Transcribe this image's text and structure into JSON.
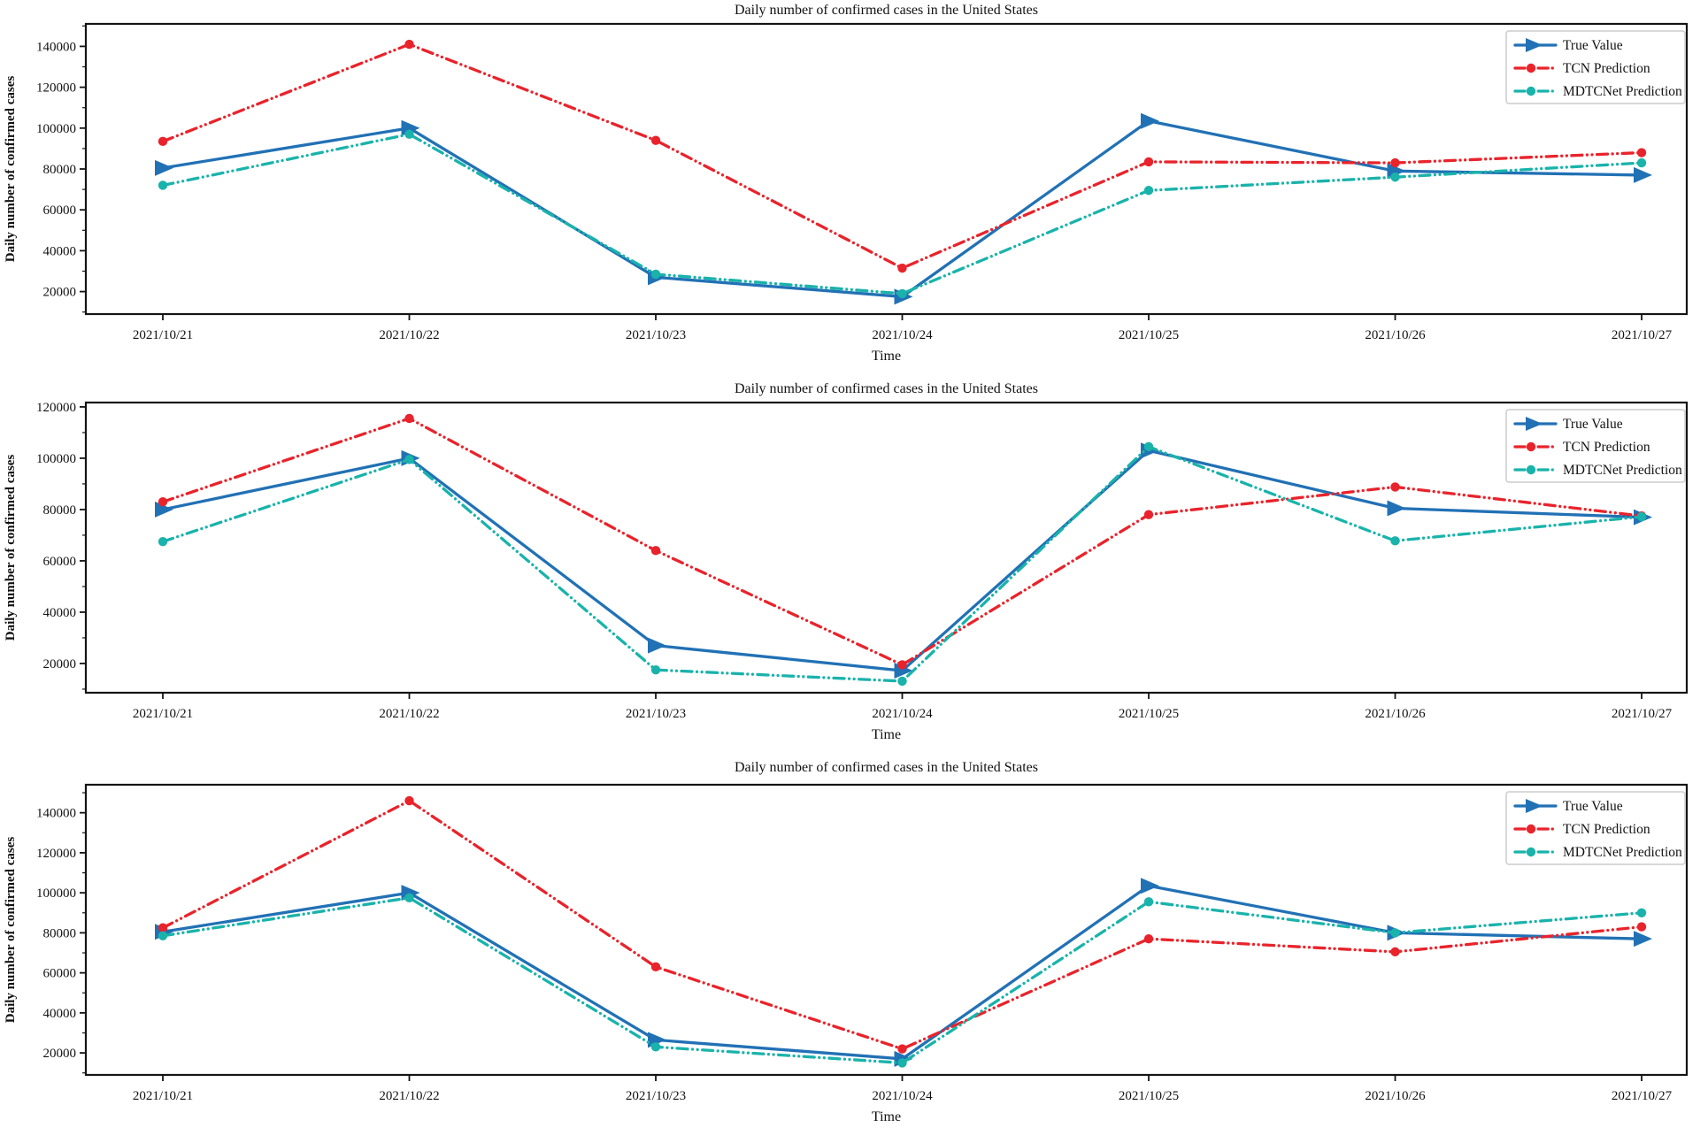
{
  "figure": {
    "background": "#ffffff",
    "spine_color": "#141414"
  },
  "chart_data": [
    {
      "type": "line",
      "title": "Daily number of confirmed cases in the United States",
      "xlabel": "Time",
      "ylabel": "Daily number of confirmed cases",
      "x": [
        "2021/10/21",
        "2021/10/22",
        "2021/10/23",
        "2021/10/24",
        "2021/10/25",
        "2021/10/26",
        "2021/10/27"
      ],
      "yticks": [
        20000,
        40000,
        60000,
        80000,
        100000,
        120000,
        140000
      ],
      "ylim": [
        9000,
        151000
      ],
      "grid": false,
      "legend_position": "upper right",
      "series": [
        {
          "name": "True Value",
          "color": "#2171b5",
          "line": "solid",
          "marker": "triangle-right",
          "values": [
            80500,
            100000,
            27000,
            17500,
            103500,
            79000,
            77000
          ]
        },
        {
          "name": "TCN Prediction",
          "color": "#e9232b",
          "line": "dashdotdot",
          "marker": "circle",
          "values": [
            93500,
            141000,
            94000,
            31500,
            83500,
            83000,
            88000
          ]
        },
        {
          "name": "MDTCNet Prediction",
          "color": "#19b3ab",
          "line": "dashdotdot",
          "marker": "circle",
          "values": [
            72000,
            97000,
            28500,
            19000,
            69500,
            76000,
            83000
          ]
        }
      ]
    },
    {
      "type": "line",
      "title": "Daily number of confirmed cases in the United States",
      "xlabel": "Time",
      "ylabel": "Daily number of confirmed cases",
      "x": [
        "2021/10/21",
        "2021/10/22",
        "2021/10/23",
        "2021/10/24",
        "2021/10/25",
        "2021/10/26",
        "2021/10/27"
      ],
      "yticks": [
        20000,
        40000,
        60000,
        80000,
        100000,
        120000
      ],
      "ylim": [
        8600,
        121700
      ],
      "grid": false,
      "legend_position": "upper right",
      "series": [
        {
          "name": "True Value",
          "color": "#2171b5",
          "line": "solid",
          "marker": "triangle-right",
          "values": [
            80000,
            100000,
            27000,
            17200,
            103000,
            80500,
            77000
          ]
        },
        {
          "name": "TCN Prediction",
          "color": "#e9232b",
          "line": "dashdotdot",
          "marker": "circle",
          "values": [
            83000,
            115500,
            64000,
            19500,
            78000,
            88800,
            77500
          ]
        },
        {
          "name": "MDTCNet Prediction",
          "color": "#19b3ab",
          "line": "dashdotdot",
          "marker": "circle",
          "values": [
            67500,
            99500,
            17500,
            13100,
            104500,
            67800,
            77200
          ]
        }
      ]
    },
    {
      "type": "line",
      "title": "Daily number of confirmed cases in the United States",
      "xlabel": "Time",
      "ylabel": "Daily number of confirmed cases",
      "x": [
        "2021/10/21",
        "2021/10/22",
        "2021/10/23",
        "2021/10/24",
        "2021/10/25",
        "2021/10/26",
        "2021/10/27"
      ],
      "yticks": [
        20000,
        40000,
        60000,
        80000,
        100000,
        120000,
        140000
      ],
      "ylim": [
        9000,
        154000
      ],
      "grid": false,
      "legend_position": "upper right",
      "series": [
        {
          "name": "True Value",
          "color": "#2171b5",
          "line": "solid",
          "marker": "triangle-right",
          "values": [
            80500,
            100000,
            26500,
            17000,
            103500,
            80000,
            77000
          ]
        },
        {
          "name": "TCN Prediction",
          "color": "#e9232b",
          "line": "dashdotdot",
          "marker": "circle",
          "values": [
            82500,
            146000,
            63000,
            22000,
            77000,
            70500,
            83000
          ]
        },
        {
          "name": "MDTCNet Prediction",
          "color": "#19b3ab",
          "line": "dashdotdot",
          "marker": "circle",
          "values": [
            78500,
            97500,
            23000,
            15000,
            95500,
            80000,
            90000
          ]
        }
      ]
    }
  ]
}
